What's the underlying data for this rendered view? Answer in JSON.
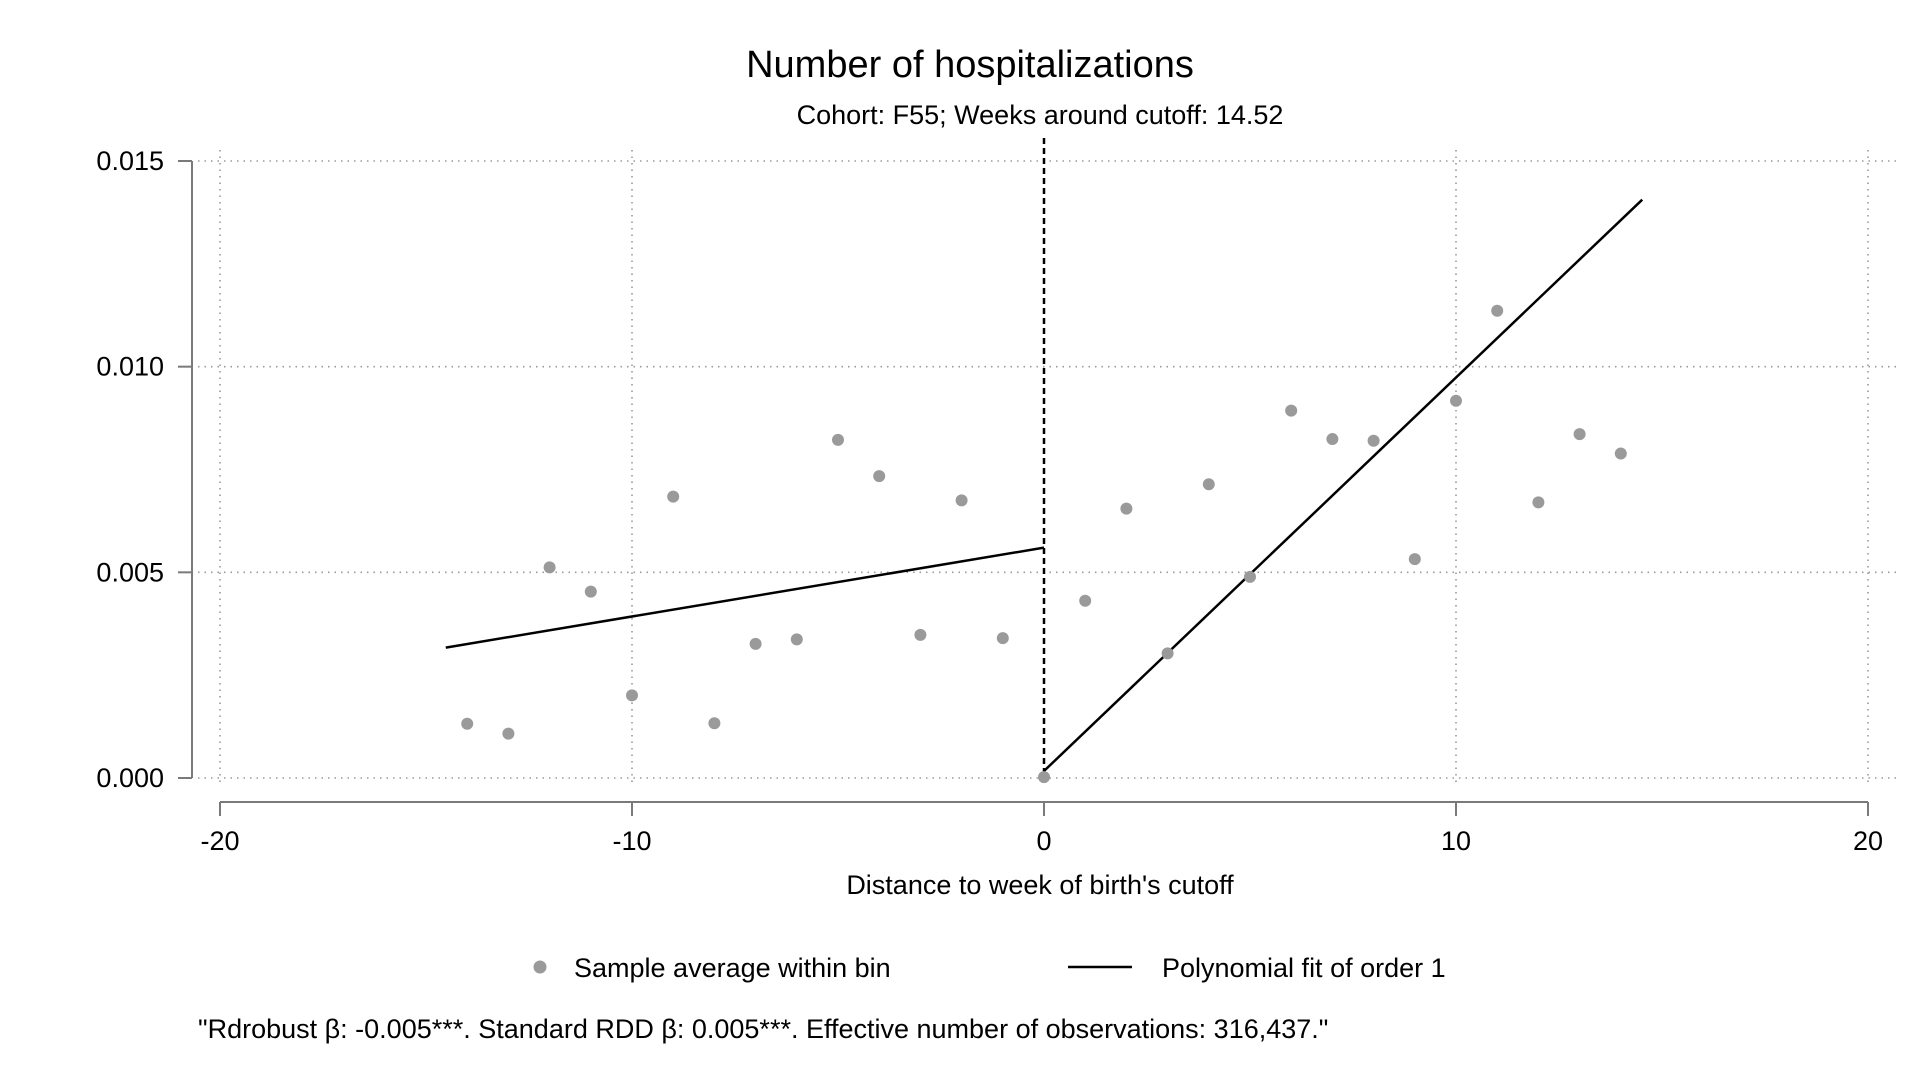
{
  "chart_data": {
    "type": "scatter",
    "title": "Number of hospitalizations",
    "subtitle": "Cohort: F55; Weeks around cutoff: 14.52",
    "xlabel": "Distance to week of birth's cutoff",
    "ylabel": "",
    "xlim": [
      -20,
      20
    ],
    "ylim": [
      0,
      0.015
    ],
    "xticks": [
      -20,
      -10,
      0,
      10,
      20
    ],
    "yticks": [
      0.0,
      0.005,
      0.01,
      0.015
    ],
    "xtick_labels": [
      "-20",
      "-10",
      "0",
      "10",
      "20"
    ],
    "ytick_labels": [
      "0.000",
      "0.005",
      "0.010",
      "0.015"
    ],
    "grid": true,
    "cutoff_x": 0,
    "legend_position": "bottom",
    "note": "\"Rdrobust β: -0.005***. Standard RDD β: 0.005***. Effective number of observations: 316,437.\"",
    "colors": {
      "points": "#9a9a9a",
      "fit": "#000000",
      "grid": "#9a9a9a",
      "axis": "#7a7a7a"
    },
    "series": [
      {
        "name": "Sample average within bin",
        "kind": "points",
        "x": [
          -14,
          -13,
          -12,
          -11,
          -10,
          -9,
          -8,
          -7,
          -6,
          -5,
          -4,
          -3,
          -2,
          -1,
          0,
          1,
          2,
          3,
          4,
          5,
          6,
          7,
          8,
          9,
          10,
          11,
          12,
          13,
          14
        ],
        "y": [
          0.00132,
          0.00108,
          0.00512,
          0.00453,
          0.00201,
          0.00684,
          0.00133,
          0.00326,
          0.00337,
          0.00822,
          0.00734,
          0.00348,
          0.00675,
          0.0034,
          2e-05,
          0.00431,
          0.00655,
          0.00303,
          0.00714,
          0.00489,
          0.00893,
          0.00824,
          0.0082,
          0.00532,
          0.00917,
          0.01136,
          0.0067,
          0.00836,
          0.00789
        ]
      },
      {
        "name": "Polynomial fit of order 1",
        "kind": "fit",
        "segments": [
          {
            "x": [
              -14.52,
              0
            ],
            "y": [
              0.00317,
              0.0056
            ]
          },
          {
            "x": [
              0,
              14.52
            ],
            "y": [
              0.00017,
              0.01406
            ]
          }
        ]
      }
    ]
  }
}
